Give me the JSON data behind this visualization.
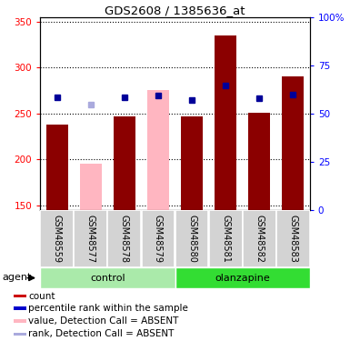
{
  "title": "GDS2608 / 1385636_at",
  "samples": [
    "GSM48559",
    "GSM48577",
    "GSM48578",
    "GSM48579",
    "GSM48580",
    "GSM48581",
    "GSM48582",
    "GSM48583"
  ],
  "groups": [
    "control",
    "control",
    "control",
    "control",
    "olanzapine",
    "olanzapine",
    "olanzapine",
    "olanzapine"
  ],
  "bar_values": [
    238,
    195,
    247,
    275,
    247,
    335,
    251,
    290
  ],
  "bar_absent": [
    false,
    true,
    false,
    true,
    false,
    false,
    false,
    false
  ],
  "rank_values": [
    268,
    260,
    268,
    270,
    265,
    280,
    267,
    271
  ],
  "rank_absent": [
    false,
    true,
    false,
    false,
    false,
    false,
    false,
    false
  ],
  "ylim_left": [
    145,
    355
  ],
  "ylim_right": [
    0,
    100
  ],
  "yticks_left": [
    150,
    200,
    250,
    300,
    350
  ],
  "yticks_right": [
    0,
    25,
    50,
    75,
    100
  ],
  "ytick_labels_right": [
    "0",
    "25",
    "50",
    "75",
    "100%"
  ],
  "color_bar_present": "#8B0000",
  "color_bar_absent": "#FFB6C1",
  "color_rank_present": "#000099",
  "color_rank_absent": "#AAAADD",
  "group_colors": {
    "control": "#AAEAAA",
    "olanzapine": "#33DD33"
  },
  "agent_label": "agent",
  "legend_items": [
    {
      "label": "count",
      "color": "#CC0000"
    },
    {
      "label": "percentile rank within the sample",
      "color": "#0000CC"
    },
    {
      "label": "value, Detection Call = ABSENT",
      "color": "#FFB6C1"
    },
    {
      "label": "rank, Detection Call = ABSENT",
      "color": "#AAAADD"
    }
  ],
  "bar_width": 0.65,
  "rank_marker_size": 5
}
